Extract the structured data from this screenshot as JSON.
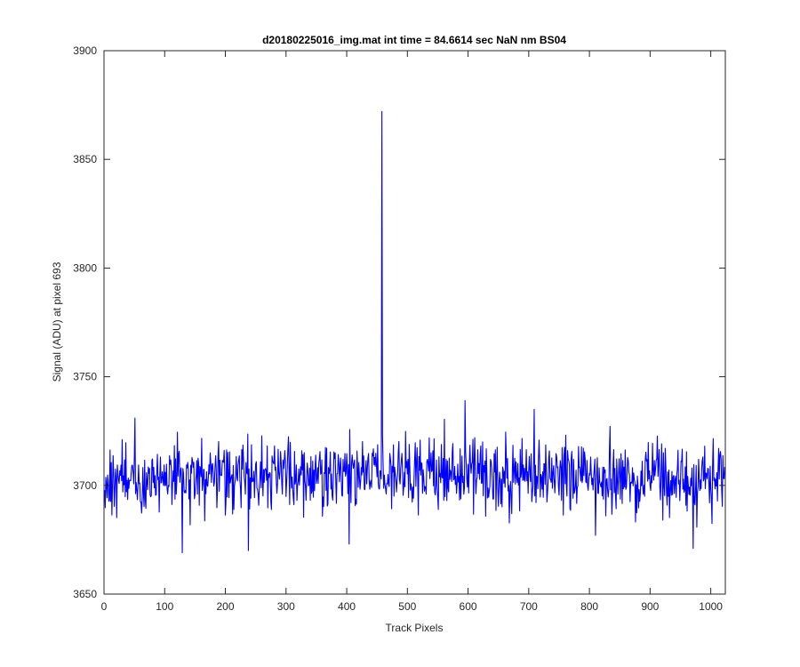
{
  "chart_data": {
    "type": "line",
    "title": "d20180225016_img.mat int time = 84.6614 sec  NaN nm BS04",
    "xlabel": "Track Pixels",
    "ylabel": "Signal (ADU) at pixel 693",
    "xlim": [
      0,
      1024
    ],
    "ylim": [
      3650,
      3900
    ],
    "xticks": [
      0,
      100,
      200,
      300,
      400,
      500,
      600,
      700,
      800,
      900,
      1000
    ],
    "yticks": [
      3650,
      3700,
      3750,
      3800,
      3850,
      3900
    ],
    "grid": false,
    "legend": "none",
    "line_color": "#0000ff",
    "series": [
      {
        "n_points": 1024,
        "baseline": 3703,
        "noise_std": 8,
        "spike": {
          "x": 458,
          "y": 3872
        },
        "notable_points": [
          {
            "x": 51,
            "y": 3731
          },
          {
            "x": 129,
            "y": 3669
          },
          {
            "x": 238,
            "y": 3670
          },
          {
            "x": 404,
            "y": 3673
          },
          {
            "x": 595,
            "y": 3739
          },
          {
            "x": 709,
            "y": 3735
          },
          {
            "x": 810,
            "y": 3677
          },
          {
            "x": 971,
            "y": 3671
          }
        ]
      }
    ]
  }
}
